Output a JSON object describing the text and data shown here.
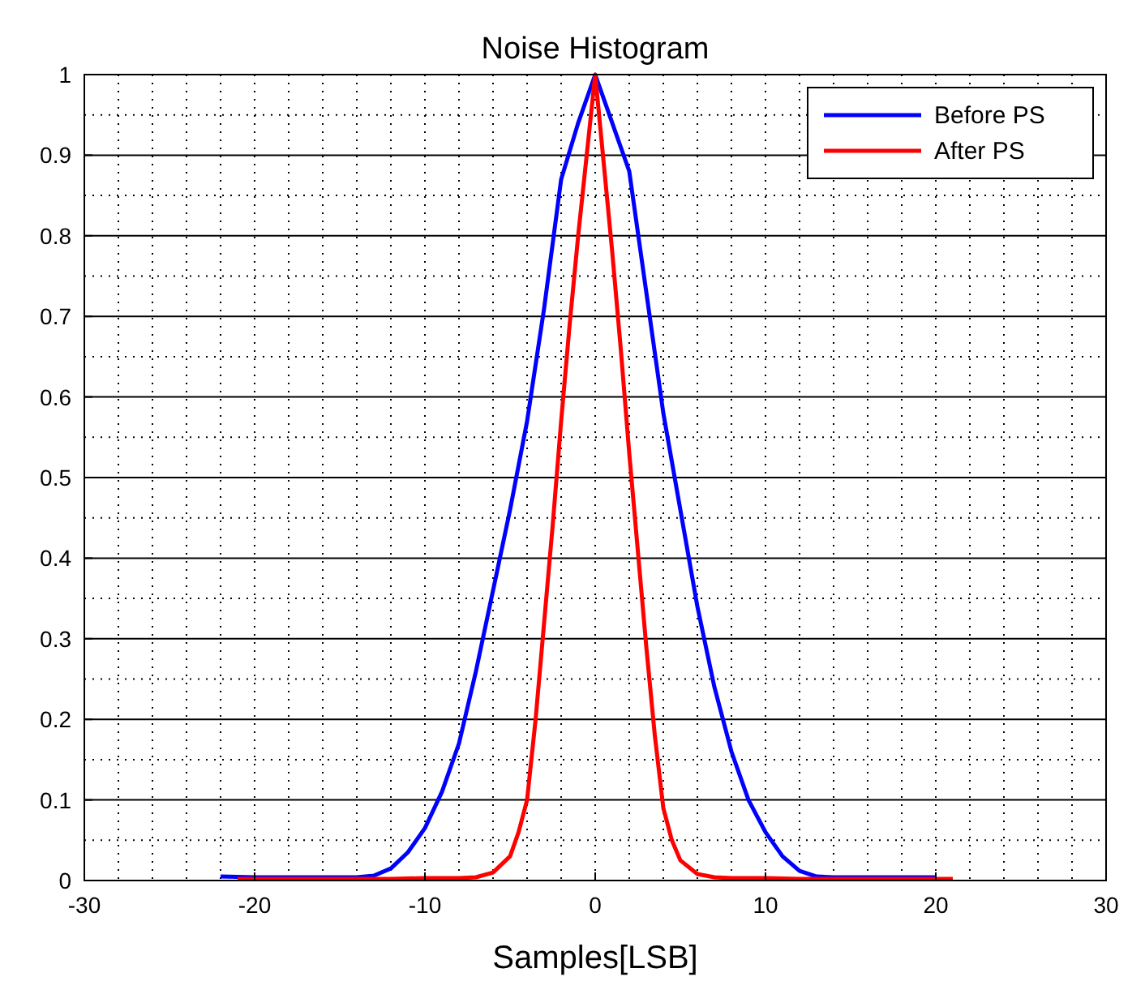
{
  "chart_data": {
    "type": "line",
    "title": "Noise Histogram",
    "xlabel": "Samples[LSB]",
    "series": [
      {
        "name": "Before PS",
        "color": "#0000ff",
        "x": [
          -22,
          -20,
          -18,
          -16,
          -14,
          -13,
          -12,
          -11,
          -10,
          -9,
          -8,
          -7,
          -6,
          -5,
          -4,
          -3,
          -2,
          -1,
          0,
          1,
          2,
          3,
          4,
          5,
          6,
          7,
          8,
          9,
          10,
          11,
          12,
          13,
          14,
          16,
          18,
          20
        ],
        "values": [
          0.005,
          0.004,
          0.004,
          0.004,
          0.004,
          0.006,
          0.015,
          0.035,
          0.065,
          0.11,
          0.17,
          0.26,
          0.36,
          0.46,
          0.57,
          0.71,
          0.87,
          0.94,
          1,
          0.94,
          0.88,
          0.73,
          0.58,
          0.46,
          0.34,
          0.24,
          0.16,
          0.1,
          0.06,
          0.03,
          0.012,
          0.005,
          0.004,
          0.004,
          0.004,
          0.004
        ]
      },
      {
        "name": "After PS",
        "color": "#ff0000",
        "x": [
          -21,
          -18,
          -15,
          -12,
          -10,
          -8,
          -7,
          -6,
          -5,
          -4.5,
          -4,
          -3.5,
          -3,
          -2.5,
          -2,
          -1.5,
          -1,
          -0.5,
          0,
          0.5,
          1,
          1.5,
          2,
          2.5,
          3,
          3.5,
          4,
          4.5,
          5,
          6,
          7,
          8,
          10,
          12,
          15,
          18,
          21
        ],
        "values": [
          0.002,
          0.002,
          0.002,
          0.002,
          0.003,
          0.003,
          0.004,
          0.01,
          0.03,
          0.06,
          0.1,
          0.2,
          0.32,
          0.44,
          0.57,
          0.69,
          0.8,
          0.9,
          1,
          0.89,
          0.78,
          0.66,
          0.53,
          0.41,
          0.29,
          0.18,
          0.09,
          0.05,
          0.025,
          0.008,
          0.004,
          0.003,
          0.003,
          0.002,
          0.002,
          0.002,
          0.002
        ]
      }
    ],
    "xlim": [
      -30,
      30
    ],
    "xticks": [
      -30,
      -20,
      -10,
      0,
      10,
      20,
      30
    ],
    "ylim": [
      0,
      1
    ],
    "yticks": [
      0,
      0.1,
      0.2,
      0.3,
      0.4,
      0.5,
      0.6,
      0.7,
      0.8,
      0.9,
      1
    ],
    "grid": true,
    "legend": "top right",
    "line_style": "solid",
    "marker": "none"
  }
}
